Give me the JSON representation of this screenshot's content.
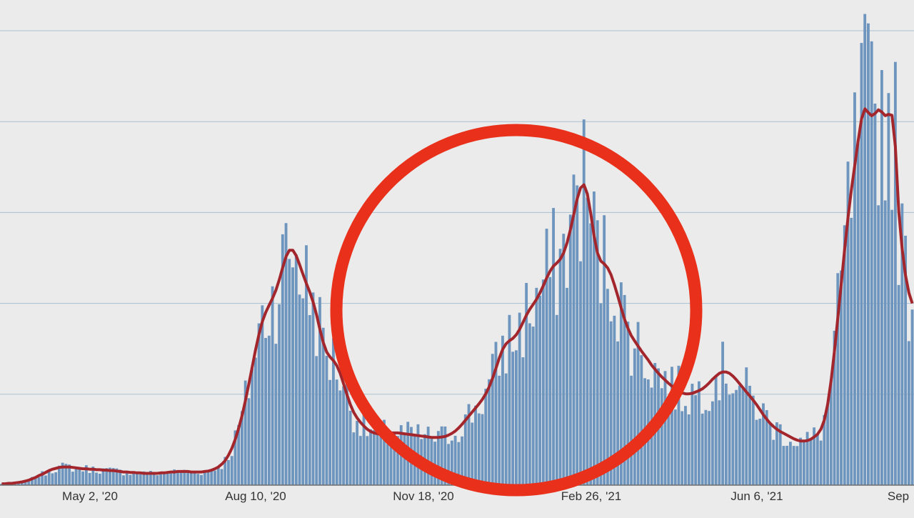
{
  "chart_data": {
    "type": "bar",
    "title": "",
    "xlabel": "",
    "ylabel": "",
    "x_ticks": [
      "May 2, '20",
      "Aug 10, '20",
      "Nov 18, '20",
      "Feb 26, '21",
      "Jun 6, '21",
      "Sep"
    ],
    "y_range": [
      0,
      100
    ],
    "y_gridlines": [
      20,
      40,
      60,
      80,
      100
    ],
    "grid": true,
    "legend": "none",
    "series": [
      {
        "kind": "bar",
        "values": [
          0.3,
          0.3,
          0.4,
          0.4,
          0.5,
          0.6,
          0.7,
          0.9,
          1.1,
          1.4,
          1.7,
          2.1,
          2.4,
          2.8,
          3.2,
          3.5,
          3.7,
          3.9,
          4.0,
          4.0,
          4.0,
          3.9,
          3.8,
          3.7,
          3.6,
          3.6,
          3.5,
          3.5,
          3.4,
          3.4,
          3.3,
          3.3,
          3.2,
          3.2,
          3.1,
          3.0,
          2.9,
          2.9,
          2.8,
          2.8,
          2.7,
          2.7,
          2.6,
          2.6,
          2.6,
          2.6,
          2.6,
          2.7,
          2.7,
          2.8,
          2.9,
          2.9,
          3.0,
          3.0,
          3.0,
          3.0,
          2.9,
          2.9,
          2.9,
          2.9,
          3.0,
          3.1,
          3.3,
          3.6,
          4.0,
          4.6,
          5.4,
          6.6,
          8.1,
          10.1,
          12.5,
          15.3,
          18.6,
          22.2,
          26.0,
          29.8,
          33.2,
          36.0,
          38.0,
          39.6,
          41.1,
          42.9,
          45.2,
          47.9,
          50.3,
          51.7,
          51.7,
          50.5,
          48.5,
          46.4,
          44.4,
          42.5,
          40.3,
          37.5,
          34.3,
          31.4,
          29.3,
          28.2,
          27.4,
          26.3,
          24.6,
          22.3,
          19.9,
          17.7,
          16.0,
          14.8,
          13.8,
          13.0,
          12.3,
          11.8,
          11.5,
          11.3,
          11.3,
          11.4,
          11.5,
          11.5,
          11.5,
          11.5,
          11.4,
          11.3,
          11.2,
          11.1,
          11.0,
          10.9,
          10.8,
          10.7,
          10.6,
          10.5,
          10.5,
          10.5,
          10.6,
          10.7,
          11.0,
          11.4,
          11.9,
          12.6,
          13.4,
          14.3,
          15.2,
          16.1,
          17.0,
          17.9,
          18.9,
          20.1,
          21.6,
          23.5,
          25.7,
          28.0,
          29.9,
          31.1,
          31.8,
          32.3,
          33.1,
          34.3,
          35.8,
          37.4,
          38.7,
          39.8,
          40.9,
          42.3,
          43.9,
          45.6,
          47.1,
          48.2,
          48.9,
          49.7,
          51.1,
          53.3,
          56.2,
          59.6,
          63.0,
          65.4,
          66.1,
          64.1,
          59.8,
          54.8,
          51.1,
          49.3,
          48.7,
          47.8,
          46.3,
          44.1,
          41.6,
          39.0,
          36.5,
          34.5,
          32.9,
          31.7,
          30.6,
          29.5,
          28.5,
          27.5,
          26.4,
          25.5,
          24.6,
          23.8,
          23.1,
          22.4,
          21.8,
          21.2,
          20.7,
          20.3,
          20.1,
          20.1,
          20.2,
          20.5,
          20.8,
          21.2,
          21.8,
          22.5,
          23.3,
          24.0,
          24.6,
          24.9,
          24.9,
          24.6,
          24.0,
          23.2,
          22.3,
          21.4,
          20.5,
          19.6,
          18.7,
          17.7,
          16.6,
          15.5,
          14.5,
          13.6,
          12.9,
          12.3,
          11.8,
          11.4,
          11.0,
          10.6,
          10.2,
          9.9,
          9.7,
          9.7,
          9.8,
          10.1,
          10.6,
          11.2,
          12.3,
          14.3,
          17.8,
          23.0,
          29.5,
          36.8,
          44.3,
          51.8,
          58.9,
          65.0,
          70.3,
          75.8,
          80.6,
          82.8,
          82.0,
          81.3,
          81.8,
          82.6,
          82.1,
          81.3,
          81.6,
          81.4,
          74.5,
          60.2,
          52.0,
          46.2,
          42.3,
          40.0
        ],
        "color": "#6e95bd"
      },
      {
        "kind": "line",
        "values": [
          0.3,
          0.3,
          0.4,
          0.4,
          0.5,
          0.6,
          0.7,
          0.9,
          1.1,
          1.4,
          1.7,
          2.1,
          2.4,
          2.8,
          3.2,
          3.5,
          3.7,
          3.9,
          4.0,
          4.0,
          4.0,
          3.9,
          3.8,
          3.7,
          3.6,
          3.6,
          3.5,
          3.5,
          3.4,
          3.4,
          3.3,
          3.3,
          3.2,
          3.2,
          3.1,
          3.0,
          2.9,
          2.9,
          2.8,
          2.8,
          2.7,
          2.7,
          2.6,
          2.6,
          2.6,
          2.6,
          2.6,
          2.7,
          2.7,
          2.8,
          2.9,
          2.9,
          3.0,
          3.0,
          3.0,
          3.0,
          2.9,
          2.9,
          2.9,
          2.9,
          3.0,
          3.1,
          3.3,
          3.6,
          4.0,
          4.6,
          5.4,
          6.6,
          8.1,
          10.1,
          12.5,
          15.3,
          18.6,
          22.2,
          26.0,
          29.8,
          33.2,
          36.0,
          38.0,
          39.6,
          41.1,
          42.9,
          45.2,
          47.9,
          50.3,
          51.7,
          51.7,
          50.5,
          48.5,
          46.4,
          44.4,
          42.5,
          40.3,
          37.5,
          34.3,
          31.4,
          29.3,
          28.2,
          27.4,
          26.3,
          24.6,
          22.3,
          19.9,
          17.7,
          16.0,
          14.8,
          13.8,
          13.0,
          12.3,
          11.8,
          11.5,
          11.3,
          11.3,
          11.4,
          11.5,
          11.5,
          11.5,
          11.5,
          11.4,
          11.3,
          11.2,
          11.1,
          11.0,
          10.9,
          10.8,
          10.7,
          10.6,
          10.5,
          10.5,
          10.5,
          10.6,
          10.7,
          11.0,
          11.4,
          11.9,
          12.6,
          13.4,
          14.3,
          15.2,
          16.1,
          17.0,
          17.9,
          18.9,
          20.1,
          21.6,
          23.5,
          25.7,
          28.0,
          29.9,
          31.1,
          31.8,
          32.3,
          33.1,
          34.3,
          35.8,
          37.4,
          38.7,
          39.8,
          40.9,
          42.3,
          43.9,
          45.6,
          47.1,
          48.2,
          48.9,
          49.7,
          51.1,
          53.3,
          56.2,
          59.6,
          63.0,
          65.4,
          66.1,
          64.1,
          59.8,
          54.8,
          51.1,
          49.3,
          48.7,
          47.8,
          46.3,
          44.1,
          41.6,
          39.0,
          36.5,
          34.5,
          32.9,
          31.7,
          30.6,
          29.5,
          28.5,
          27.5,
          26.4,
          25.5,
          24.6,
          23.8,
          23.1,
          22.4,
          21.8,
          21.2,
          20.7,
          20.3,
          20.1,
          20.1,
          20.2,
          20.5,
          20.8,
          21.2,
          21.8,
          22.5,
          23.3,
          24.0,
          24.6,
          24.9,
          24.9,
          24.6,
          24.0,
          23.2,
          22.3,
          21.4,
          20.5,
          19.6,
          18.7,
          17.7,
          16.6,
          15.5,
          14.5,
          13.6,
          12.9,
          12.3,
          11.8,
          11.4,
          11.0,
          10.6,
          10.2,
          9.9,
          9.7,
          9.7,
          9.8,
          10.1,
          10.6,
          11.2,
          12.3,
          14.3,
          17.8,
          23.0,
          29.5,
          36.8,
          44.3,
          51.8,
          58.9,
          65.0,
          70.3,
          75.8,
          80.6,
          82.8,
          82.0,
          81.3,
          81.8,
          82.6,
          82.1,
          81.3,
          81.6,
          81.4,
          74.5,
          60.2,
          52.0,
          46.2,
          42.3,
          40.0
        ],
        "color": "#a3262c"
      }
    ]
  },
  "annotation": {
    "shape": "circle",
    "color": "#e8301a"
  },
  "colors": {
    "background": "#ebebeb",
    "gridline": "#a9bfd0",
    "axis_text": "#333333"
  }
}
